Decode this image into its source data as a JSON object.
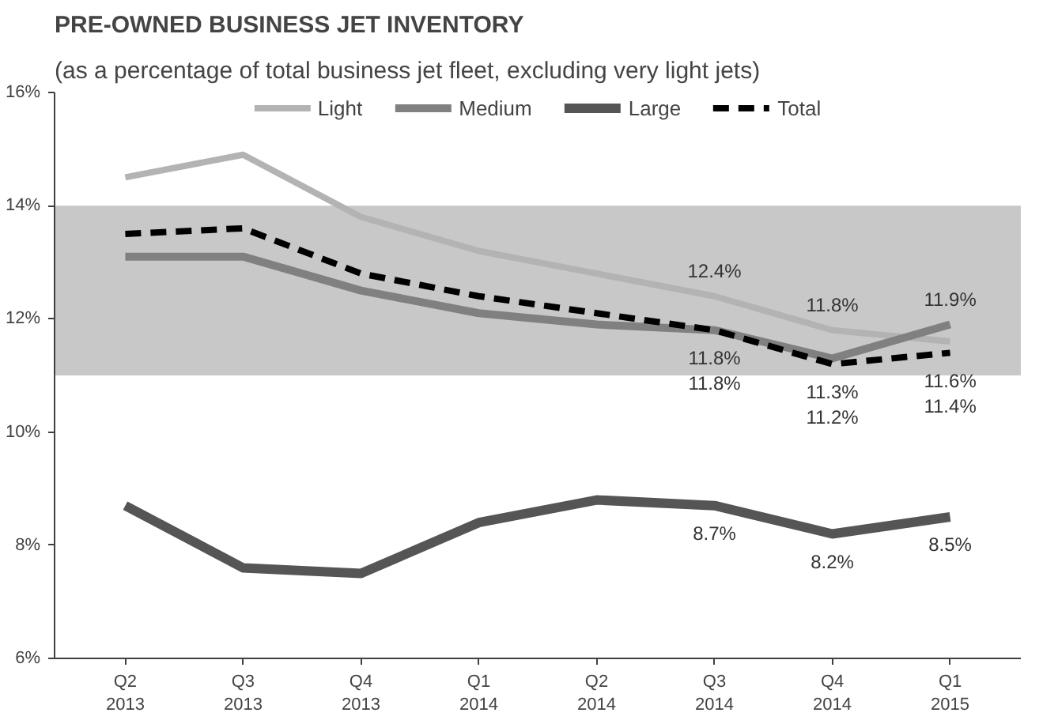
{
  "chart_data": {
    "type": "line",
    "title": "PRE-OWNED BUSINESS JET INVENTORY",
    "subtitle": "(as a percentage of total business jet fleet, excluding very light jets)",
    "categories": [
      "Q2\n2013",
      "Q3\n2013",
      "Q4\n2013",
      "Q1\n2014",
      "Q2\n2014",
      "Q3\n2014",
      "Q4\n2014",
      "Q1\n2015"
    ],
    "series": [
      {
        "name": "Light",
        "color": "#b3b3b3",
        "line_style": "solid",
        "values": [
          14.5,
          14.9,
          13.8,
          13.2,
          12.8,
          12.4,
          11.8,
          11.6
        ],
        "value_labels": [
          null,
          null,
          null,
          null,
          null,
          "12.4%",
          "11.8%",
          "11.6%"
        ]
      },
      {
        "name": "Medium",
        "color": "#808080",
        "line_style": "solid",
        "values": [
          13.1,
          13.1,
          12.5,
          12.1,
          11.9,
          11.8,
          11.3,
          11.9
        ],
        "value_labels": [
          null,
          null,
          null,
          null,
          null,
          "11.8%",
          "11.3%",
          "11.9%"
        ]
      },
      {
        "name": "Large",
        "color": "#555555",
        "line_style": "solid",
        "values": [
          8.7,
          7.6,
          7.5,
          8.4,
          8.8,
          8.7,
          8.2,
          8.5
        ],
        "value_labels": [
          null,
          null,
          null,
          null,
          null,
          "8.7%",
          "8.2%",
          "8.5%"
        ]
      },
      {
        "name": "Total",
        "color": "#000000",
        "line_style": "dashed",
        "values": [
          13.5,
          13.6,
          12.8,
          12.4,
          12.1,
          11.8,
          11.2,
          11.4
        ],
        "value_labels": [
          null,
          null,
          null,
          null,
          null,
          "11.8%",
          "11.2%",
          "11.4%"
        ]
      }
    ],
    "ylim": [
      6,
      16
    ],
    "yticks": [
      {
        "value": 6,
        "label": "6%"
      },
      {
        "value": 8,
        "label": "8%"
      },
      {
        "value": 10,
        "label": "10%"
      },
      {
        "value": 12,
        "label": "12%"
      },
      {
        "value": 14,
        "label": "14%"
      },
      {
        "value": 16,
        "label": "16%"
      }
    ],
    "bands": [
      {
        "axis": "y",
        "from": 11,
        "to": 14,
        "color": "#c8c8c8"
      }
    ],
    "grid": false,
    "legend": "top",
    "marker": "none"
  }
}
